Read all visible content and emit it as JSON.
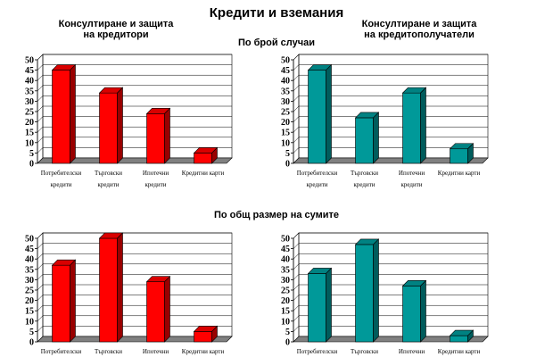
{
  "title": "Кредити и вземания",
  "left_heading": [
    "Консултиране и защита",
    "на кредитори"
  ],
  "right_heading": [
    "Консултиране и защита",
    "на кредитополучатели"
  ],
  "subtitle_count": "По брой случаи",
  "subtitle_sum": "По общ размер на сумите",
  "colors": {
    "red": "#ff0000",
    "teal": "#009999"
  },
  "chart_data": [
    {
      "type": "bar",
      "id": "chart-tl",
      "color": "red",
      "categories": [
        [
          "Потребителски",
          "кредити"
        ],
        [
          "Търговски",
          "кредити"
        ],
        [
          "Ипотечни",
          "кредити"
        ],
        [
          "Кредитни карти"
        ]
      ],
      "values": [
        45,
        34,
        24,
        5
      ],
      "ylim": [
        0,
        50
      ],
      "yticks": [
        0,
        5,
        10,
        15,
        20,
        25,
        30,
        35,
        40,
        45,
        50
      ],
      "grid": true
    },
    {
      "type": "bar",
      "id": "chart-tr",
      "color": "teal",
      "categories": [
        [
          "Потребителски",
          "кредити"
        ],
        [
          "Търговски",
          "кредити"
        ],
        [
          "Ипотечни",
          "кредити"
        ],
        [
          "Кредитни карти"
        ]
      ],
      "values": [
        45,
        22,
        34,
        7
      ],
      "ylim": [
        0,
        50
      ],
      "yticks": [
        0,
        5,
        10,
        15,
        20,
        25,
        30,
        35,
        40,
        45,
        50
      ],
      "grid": true
    },
    {
      "type": "bar",
      "id": "chart-bl",
      "color": "red",
      "categories": [
        [
          "Потребителски"
        ],
        [
          "Търговски"
        ],
        [
          "Ипотечни"
        ],
        [
          "Кредитни карти"
        ]
      ],
      "values": [
        37,
        50,
        29,
        5
      ],
      "ylim": [
        0,
        50
      ],
      "yticks": [
        0,
        5,
        10,
        15,
        20,
        25,
        30,
        35,
        40,
        45,
        50
      ],
      "grid": true
    },
    {
      "type": "bar",
      "id": "chart-br",
      "color": "teal",
      "categories": [
        [
          "Потребителски"
        ],
        [
          "Търговски"
        ],
        [
          "Ипотечни"
        ],
        [
          "Кредитни карти"
        ]
      ],
      "values": [
        33,
        47,
        27,
        3
      ],
      "ylim": [
        0,
        50
      ],
      "yticks": [
        0,
        5,
        10,
        15,
        20,
        25,
        30,
        35,
        40,
        45,
        50
      ],
      "grid": true
    }
  ]
}
